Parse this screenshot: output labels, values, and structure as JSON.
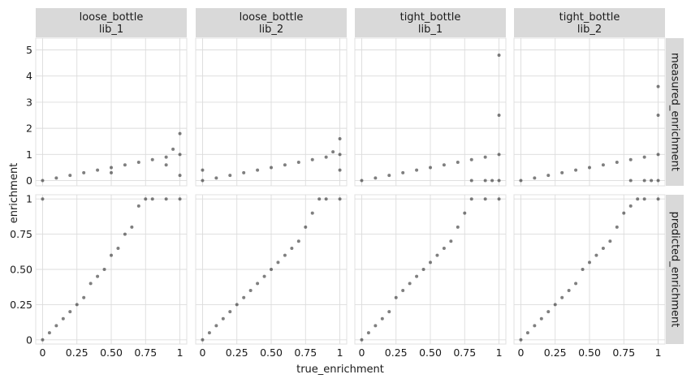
{
  "chart_data": {
    "type": "scatter",
    "xlabel": "true_enrichment",
    "ylabel": "enrichment",
    "facet_columns": [
      {
        "line1": "loose_bottle",
        "line2": "lib_1"
      },
      {
        "line1": "loose_bottle",
        "line2": "lib_2"
      },
      {
        "line1": "tight_bottle",
        "line2": "lib_1"
      },
      {
        "line1": "tight_bottle",
        "line2": "lib_2"
      }
    ],
    "facet_rows": [
      {
        "label": "measured_enrichment",
        "ylim": [
          -0.2,
          5.45
        ],
        "yticks": [
          0,
          1,
          2,
          3,
          4,
          5
        ],
        "ytick_labels": [
          "0",
          "1",
          "2",
          "3",
          "4",
          "5"
        ]
      },
      {
        "label": "predicted_enrichment",
        "ylim": [
          -0.03,
          1.03
        ],
        "yticks": [
          0,
          0.25,
          0.5,
          0.75,
          1
        ],
        "ytick_labels": [
          "0",
          "0.25",
          "0.50",
          "0.75",
          "1"
        ]
      }
    ],
    "xlim": [
      -0.05,
      1.05
    ],
    "xticks": [
      0,
      0.25,
      0.5,
      0.75,
      1
    ],
    "xtick_labels": [
      "0",
      "0.25",
      "0.50",
      "0.75",
      "1"
    ],
    "grid": true,
    "point_color": "#000000",
    "panels": [
      {
        "row": 0,
        "col": 0,
        "x": [
          0.0,
          0.1,
          0.2,
          0.3,
          0.4,
          0.5,
          0.6,
          0.7,
          0.8,
          0.9,
          0.95,
          1.0,
          1.0,
          1.0,
          0.5,
          0.9
        ],
        "y": [
          0.0,
          0.1,
          0.2,
          0.3,
          0.4,
          0.5,
          0.6,
          0.7,
          0.8,
          0.9,
          1.2,
          1.0,
          1.8,
          0.2,
          0.3,
          0.6
        ]
      },
      {
        "row": 0,
        "col": 1,
        "x": [
          0.0,
          0.1,
          0.2,
          0.3,
          0.4,
          0.5,
          0.6,
          0.7,
          0.8,
          0.9,
          0.95,
          1.0,
          1.0,
          1.0,
          0.0
        ],
        "y": [
          0.0,
          0.1,
          0.2,
          0.3,
          0.4,
          0.5,
          0.6,
          0.7,
          0.8,
          0.9,
          1.1,
          1.0,
          1.6,
          0.4,
          0.4
        ]
      },
      {
        "row": 0,
        "col": 2,
        "x": [
          0.0,
          0.1,
          0.2,
          0.3,
          0.4,
          0.5,
          0.6,
          0.7,
          0.8,
          0.9,
          1.0,
          1.0,
          1.0,
          0.8,
          0.9,
          0.95,
          1.0
        ],
        "y": [
          0.0,
          0.1,
          0.2,
          0.3,
          0.4,
          0.5,
          0.6,
          0.7,
          0.8,
          0.9,
          1.0,
          2.5,
          4.8,
          0.0,
          0.0,
          0.0,
          0.0
        ]
      },
      {
        "row": 0,
        "col": 3,
        "x": [
          0.0,
          0.1,
          0.2,
          0.3,
          0.4,
          0.5,
          0.6,
          0.7,
          0.8,
          0.9,
          1.0,
          1.0,
          1.0,
          0.8,
          0.9,
          0.95,
          1.0
        ],
        "y": [
          0.0,
          0.1,
          0.2,
          0.3,
          0.4,
          0.5,
          0.6,
          0.7,
          0.8,
          0.9,
          1.0,
          2.5,
          3.6,
          0.0,
          0.0,
          0.0,
          0.0
        ]
      },
      {
        "row": 1,
        "col": 0,
        "x": [
          0.0,
          0.05,
          0.1,
          0.15,
          0.2,
          0.25,
          0.3,
          0.35,
          0.4,
          0.45,
          0.5,
          0.55,
          0.6,
          0.65,
          0.7,
          0.75,
          0.8,
          0.9,
          1.0,
          0.0
        ],
        "y": [
          0.0,
          0.05,
          0.1,
          0.15,
          0.2,
          0.25,
          0.3,
          0.4,
          0.45,
          0.5,
          0.6,
          0.65,
          0.75,
          0.8,
          0.95,
          1.0,
          1.0,
          1.0,
          1.0,
          1.0
        ]
      },
      {
        "row": 1,
        "col": 1,
        "x": [
          0.0,
          0.05,
          0.1,
          0.15,
          0.2,
          0.25,
          0.3,
          0.35,
          0.4,
          0.45,
          0.5,
          0.55,
          0.6,
          0.65,
          0.7,
          0.75,
          0.8,
          0.85,
          0.9,
          1.0
        ],
        "y": [
          0.0,
          0.05,
          0.1,
          0.15,
          0.2,
          0.25,
          0.3,
          0.35,
          0.4,
          0.45,
          0.5,
          0.55,
          0.6,
          0.65,
          0.7,
          0.8,
          0.9,
          1.0,
          1.0,
          1.0
        ]
      },
      {
        "row": 1,
        "col": 2,
        "x": [
          0.0,
          0.05,
          0.1,
          0.15,
          0.2,
          0.25,
          0.3,
          0.35,
          0.4,
          0.45,
          0.5,
          0.55,
          0.6,
          0.65,
          0.7,
          0.75,
          0.8,
          0.9,
          1.0
        ],
        "y": [
          0.0,
          0.05,
          0.1,
          0.15,
          0.2,
          0.3,
          0.35,
          0.4,
          0.45,
          0.5,
          0.55,
          0.6,
          0.65,
          0.7,
          0.8,
          0.9,
          1.0,
          1.0,
          1.0
        ]
      },
      {
        "row": 1,
        "col": 3,
        "x": [
          0.0,
          0.05,
          0.1,
          0.15,
          0.2,
          0.25,
          0.3,
          0.35,
          0.4,
          0.45,
          0.5,
          0.55,
          0.6,
          0.65,
          0.7,
          0.75,
          0.8,
          0.85,
          0.9,
          1.0
        ],
        "y": [
          0.0,
          0.05,
          0.1,
          0.15,
          0.2,
          0.25,
          0.3,
          0.35,
          0.4,
          0.5,
          0.55,
          0.6,
          0.65,
          0.7,
          0.8,
          0.9,
          0.95,
          1.0,
          1.0,
          1.0
        ]
      }
    ]
  }
}
